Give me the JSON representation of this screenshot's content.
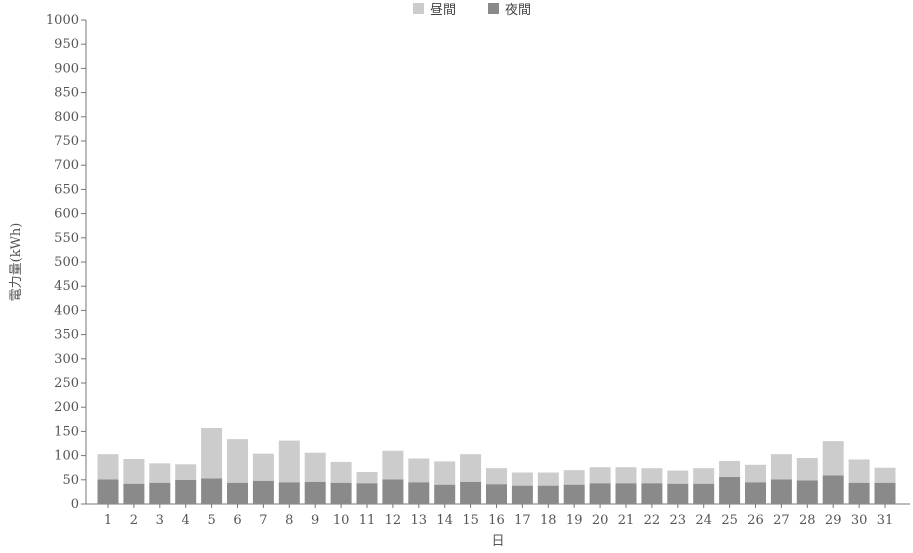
{
  "chart_data": {
    "type": "bar",
    "stacked": true,
    "xlabel": "日",
    "ylabel": "電力量(kWh)",
    "ylim": [
      0,
      1000
    ],
    "ytick_step": 50,
    "grid": false,
    "legend_position": "top-center",
    "categories": [
      "1",
      "2",
      "3",
      "4",
      "5",
      "6",
      "7",
      "8",
      "9",
      "10",
      "11",
      "12",
      "13",
      "14",
      "15",
      "16",
      "17",
      "18",
      "19",
      "20",
      "21",
      "22",
      "23",
      "24",
      "25",
      "26",
      "27",
      "28",
      "29",
      "30",
      "31"
    ],
    "series": [
      {
        "name": "夜間",
        "color": "#8a8a8a",
        "values": [
          51,
          42,
          44,
          50,
          53,
          44,
          48,
          45,
          46,
          44,
          43,
          51,
          45,
          40,
          46,
          41,
          38,
          38,
          40,
          43,
          43,
          43,
          42,
          42,
          56,
          45,
          51,
          49,
          59,
          44,
          44
        ]
      },
      {
        "name": "昼間",
        "color": "#cccccc",
        "values": [
          52,
          51,
          40,
          32,
          104,
          90,
          56,
          86,
          60,
          43,
          23,
          59,
          49,
          48,
          57,
          33,
          27,
          27,
          30,
          33,
          33,
          31,
          27,
          32,
          33,
          36,
          52,
          46,
          71,
          48,
          31
        ]
      }
    ]
  }
}
